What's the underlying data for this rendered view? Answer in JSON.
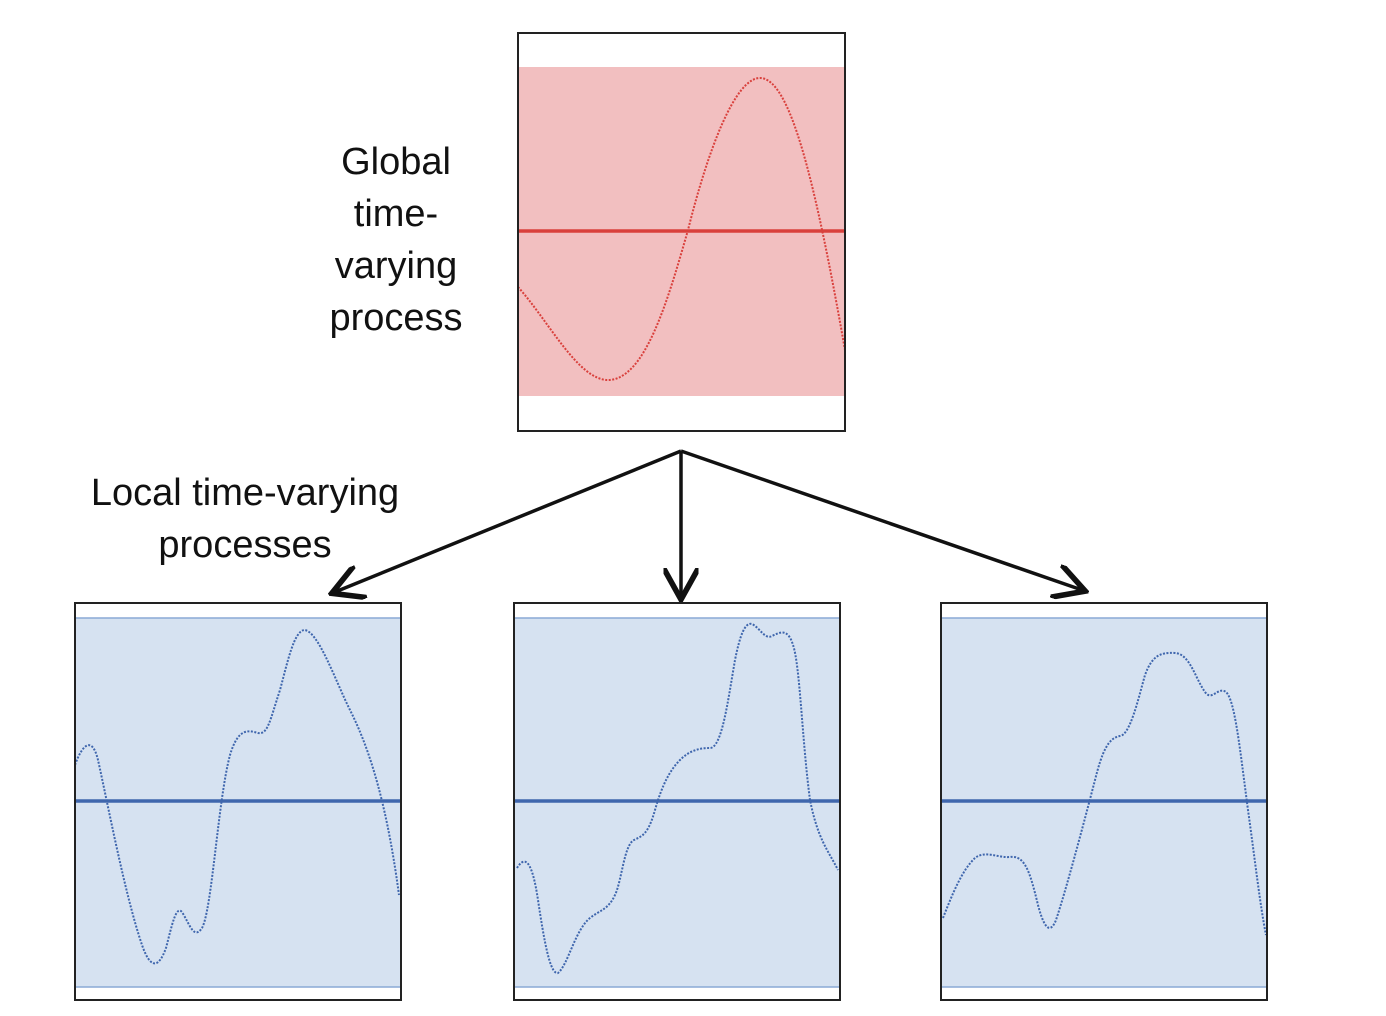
{
  "labels": {
    "global": [
      "Global",
      "time-",
      "varying",
      "process"
    ],
    "local": [
      "Local time-varying",
      "processes"
    ]
  },
  "colors": {
    "global_fill": "#f2bfc0",
    "global_line": "#d9403c",
    "local_fill": "#d6e2f1",
    "local_line": "#3f66ad",
    "frame": "#222222",
    "arrow": "#111111"
  },
  "icons": [
    "arrow-down-left-icon",
    "arrow-down-icon",
    "arrow-down-right-icon"
  ]
}
